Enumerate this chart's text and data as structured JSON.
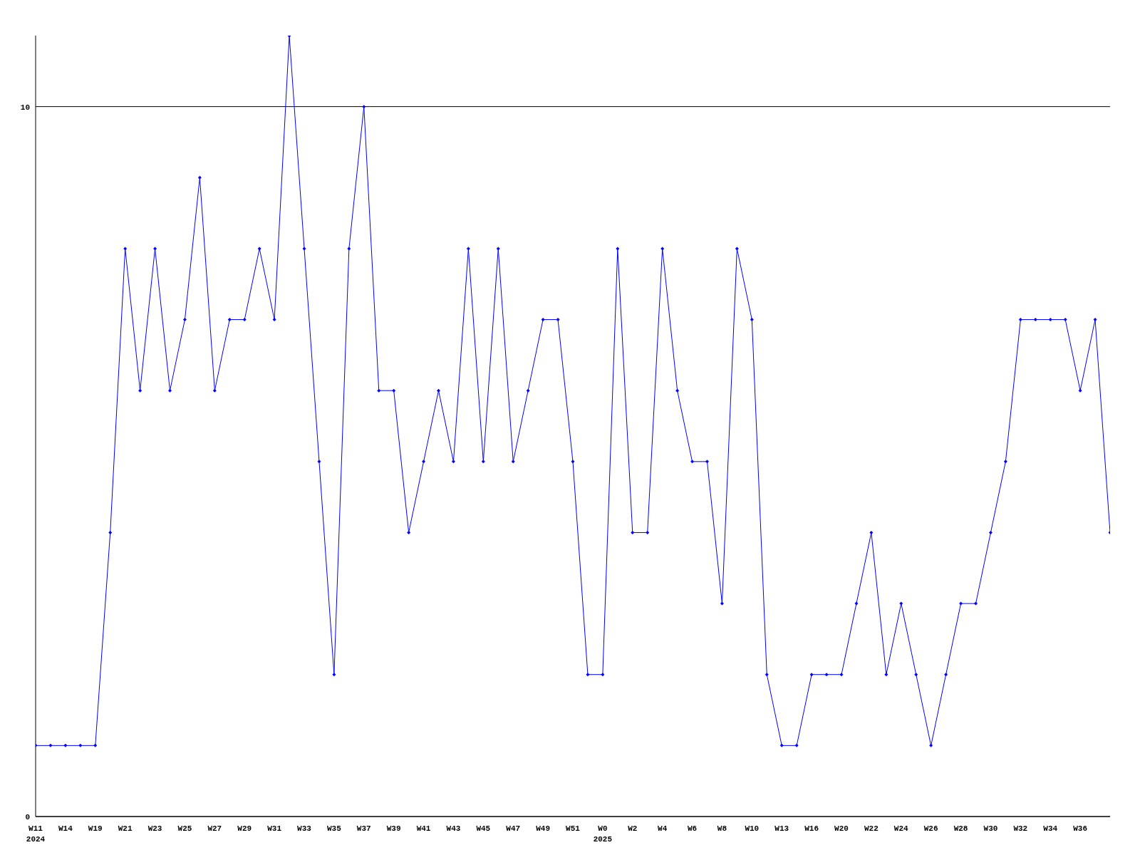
{
  "chart_data": {
    "type": "line",
    "categories": [
      "W11\n2024",
      null,
      "W14",
      null,
      "W19",
      null,
      "W21",
      null,
      "W23",
      null,
      "W25",
      null,
      "W27",
      null,
      "W29",
      null,
      "W31",
      null,
      "W33",
      null,
      "W35",
      null,
      "W37",
      null,
      "W39",
      null,
      "W41",
      null,
      "W43",
      null,
      "W45",
      null,
      "W47",
      null,
      "W49",
      null,
      "W51",
      null,
      "W0\n2025",
      null,
      "W2",
      null,
      "W4",
      null,
      "W6",
      null,
      "W8",
      null,
      "W10",
      null,
      "W13",
      null,
      "W16",
      null,
      "W20",
      null,
      "W22",
      null,
      "W24",
      null,
      "W26",
      null,
      "W28",
      null,
      "W30",
      null,
      "W32",
      null,
      "W34",
      null,
      "W36",
      null,
      null
    ],
    "series": [
      {
        "color": "#0000ff",
        "values": [
          1,
          1,
          1,
          1,
          1,
          4,
          8,
          6,
          8,
          6,
          7,
          9,
          6,
          7,
          7,
          8,
          7,
          11,
          8,
          5,
          2,
          8,
          10,
          6,
          6,
          4,
          5,
          6,
          5,
          8,
          5,
          8,
          5,
          6,
          7,
          7,
          5,
          2,
          2,
          8,
          4,
          4,
          8,
          6,
          5,
          5,
          3,
          8,
          7,
          2,
          1,
          1,
          2,
          2,
          2,
          3,
          4,
          2,
          3,
          2,
          1,
          2,
          3,
          3,
          4,
          5,
          7,
          7,
          7,
          7,
          6,
          7,
          4
        ]
      }
    ],
    "ylim": [
      0,
      11
    ],
    "yticks": [
      0,
      10
    ],
    "grid": "y",
    "marker": "diamond",
    "line_style": "solid"
  }
}
